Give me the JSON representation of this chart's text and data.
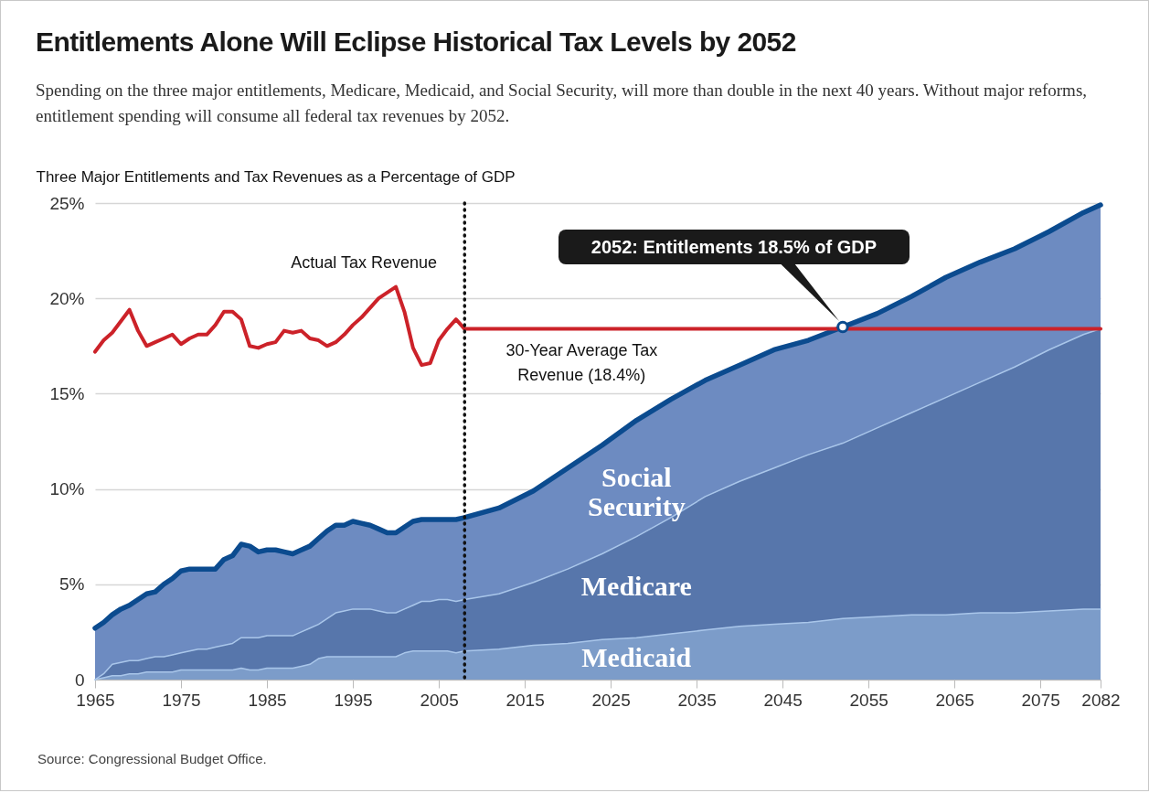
{
  "chart_data": {
    "type": "area",
    "title": "Entitlements Alone Will Eclipse Historical Tax Levels by 2052",
    "subtitle": "Spending on the three major entitlements, Medicare, Medicaid, and Social Security, will more than double in the next 40 years. Without major reforms, entitlement spending will consume all federal tax revenues by 2052.",
    "ylabel": "Three Major Entitlements and Tax Revenues as a Percentage of GDP",
    "stacked": true,
    "x": [
      1965,
      1966,
      1967,
      1968,
      1969,
      1970,
      1971,
      1972,
      1973,
      1974,
      1975,
      1976,
      1977,
      1978,
      1979,
      1980,
      1981,
      1982,
      1983,
      1984,
      1985,
      1986,
      1987,
      1988,
      1989,
      1990,
      1991,
      1992,
      1993,
      1994,
      1995,
      1996,
      1997,
      1998,
      1999,
      2000,
      2001,
      2002,
      2003,
      2004,
      2005,
      2006,
      2007,
      2008,
      2012,
      2016,
      2020,
      2024,
      2028,
      2032,
      2036,
      2040,
      2044,
      2048,
      2052,
      2056,
      2060,
      2064,
      2068,
      2072,
      2076,
      2080,
      2082
    ],
    "series": [
      {
        "name": "Medicaid",
        "type": "area",
        "color": "#7c9cc9",
        "values": [
          0,
          0.1,
          0.2,
          0.2,
          0.3,
          0.3,
          0.4,
          0.4,
          0.4,
          0.4,
          0.5,
          0.5,
          0.5,
          0.5,
          0.5,
          0.5,
          0.5,
          0.6,
          0.5,
          0.5,
          0.6,
          0.6,
          0.6,
          0.6,
          0.7,
          0.8,
          1.1,
          1.2,
          1.2,
          1.2,
          1.2,
          1.2,
          1.2,
          1.2,
          1.2,
          1.2,
          1.4,
          1.5,
          1.5,
          1.5,
          1.5,
          1.5,
          1.4,
          1.5,
          1.6,
          1.8,
          1.9,
          2.1,
          2.2,
          2.4,
          2.6,
          2.8,
          2.9,
          3.0,
          3.2,
          3.3,
          3.4,
          3.4,
          3.5,
          3.5,
          3.6,
          3.7,
          3.7
        ]
      },
      {
        "name": "Medicare",
        "type": "area",
        "color": "#5776ab",
        "values": [
          0,
          0.2,
          0.6,
          0.7,
          0.7,
          0.7,
          0.7,
          0.8,
          0.8,
          0.9,
          0.9,
          1.0,
          1.1,
          1.1,
          1.2,
          1.3,
          1.4,
          1.6,
          1.7,
          1.7,
          1.7,
          1.7,
          1.7,
          1.7,
          1.8,
          1.9,
          1.8,
          2.0,
          2.3,
          2.4,
          2.5,
          2.5,
          2.5,
          2.4,
          2.3,
          2.3,
          2.3,
          2.4,
          2.6,
          2.6,
          2.7,
          2.7,
          2.7,
          2.7,
          2.9,
          3.3,
          3.9,
          4.5,
          5.3,
          6.1,
          7.0,
          7.6,
          8.2,
          8.8,
          9.2,
          9.9,
          10.6,
          11.4,
          12.1,
          12.9,
          13.7,
          14.4,
          14.7
        ]
      },
      {
        "name": "Social Security",
        "type": "area",
        "color": "#6d8bc1",
        "values": [
          2.7,
          2.7,
          2.6,
          2.8,
          2.9,
          3.2,
          3.4,
          3.4,
          3.8,
          4.0,
          4.3,
          4.3,
          4.2,
          4.2,
          4.1,
          4.5,
          4.6,
          4.9,
          4.8,
          4.5,
          4.5,
          4.5,
          4.4,
          4.3,
          4.3,
          4.3,
          4.5,
          4.6,
          4.6,
          4.5,
          4.6,
          4.5,
          4.4,
          4.3,
          4.2,
          4.2,
          4.3,
          4.4,
          4.3,
          4.3,
          4.2,
          4.2,
          4.3,
          4.3,
          4.5,
          4.8,
          5.3,
          5.7,
          6.1,
          6.2,
          6.1,
          6.1,
          6.2,
          6.0,
          6.1,
          6.0,
          6.1,
          6.3,
          6.3,
          6.2,
          6.2,
          6.4,
          6.5
        ]
      },
      {
        "name": "Actual Tax Revenue",
        "type": "line",
        "color": "#cc2229",
        "x": [
          1965,
          1966,
          1967,
          1968,
          1969,
          1970,
          1971,
          1972,
          1973,
          1974,
          1975,
          1976,
          1977,
          1978,
          1979,
          1980,
          1981,
          1982,
          1983,
          1984,
          1985,
          1986,
          1987,
          1988,
          1989,
          1990,
          1991,
          1992,
          1993,
          1994,
          1995,
          1996,
          1997,
          1998,
          1999,
          2000,
          2001,
          2002,
          2003,
          2004,
          2005,
          2006,
          2007,
          2008
        ],
        "values": [
          17.2,
          17.8,
          18.2,
          18.8,
          19.4,
          18.3,
          17.5,
          17.7,
          17.9,
          18.1,
          17.6,
          17.9,
          18.1,
          18.1,
          18.6,
          19.3,
          19.3,
          18.9,
          17.5,
          17.4,
          17.6,
          17.7,
          18.3,
          18.2,
          18.3,
          17.9,
          17.8,
          17.5,
          17.7,
          18.1,
          18.6,
          19.0,
          19.5,
          20.0,
          20.3,
          20.6,
          19.3,
          17.4,
          16.5,
          16.6,
          17.8,
          18.4,
          18.9,
          18.4
        ]
      },
      {
        "name": "30-Year Average Tax Revenue (18.4%)",
        "type": "line",
        "color": "#cc2229",
        "x": [
          2008,
          2082
        ],
        "values": [
          18.4,
          18.4
        ]
      },
      {
        "type": "scatter",
        "color": "#0b4b8f",
        "x": [
          2052
        ],
        "values": [
          18.5
        ],
        "marker": "circle"
      }
    ],
    "xlim": [
      1965,
      2082
    ],
    "xticks": [
      1965,
      1975,
      1985,
      1995,
      2005,
      2015,
      2025,
      2035,
      2045,
      2055,
      2065,
      2075,
      2082
    ],
    "ylim": [
      0,
      25
    ],
    "yticks": [
      {
        "value": 0,
        "label": "0"
      },
      {
        "value": 5,
        "label": "5%"
      },
      {
        "value": 10,
        "label": "10%"
      },
      {
        "value": 15,
        "label": "15%"
      },
      {
        "value": 20,
        "label": "20%"
      },
      {
        "value": 25,
        "label": "25%"
      }
    ],
    "grid": "y",
    "legend": false,
    "marker": "none",
    "line_style": "solid",
    "ref_lines": [
      {
        "axis": "x",
        "value": 2008,
        "color": "#111111",
        "line_style": "dotted"
      }
    ],
    "annotations": [
      "2052: Entitlements 18.5% of GDP",
      "Source: Congressional Budget Office."
    ]
  }
}
